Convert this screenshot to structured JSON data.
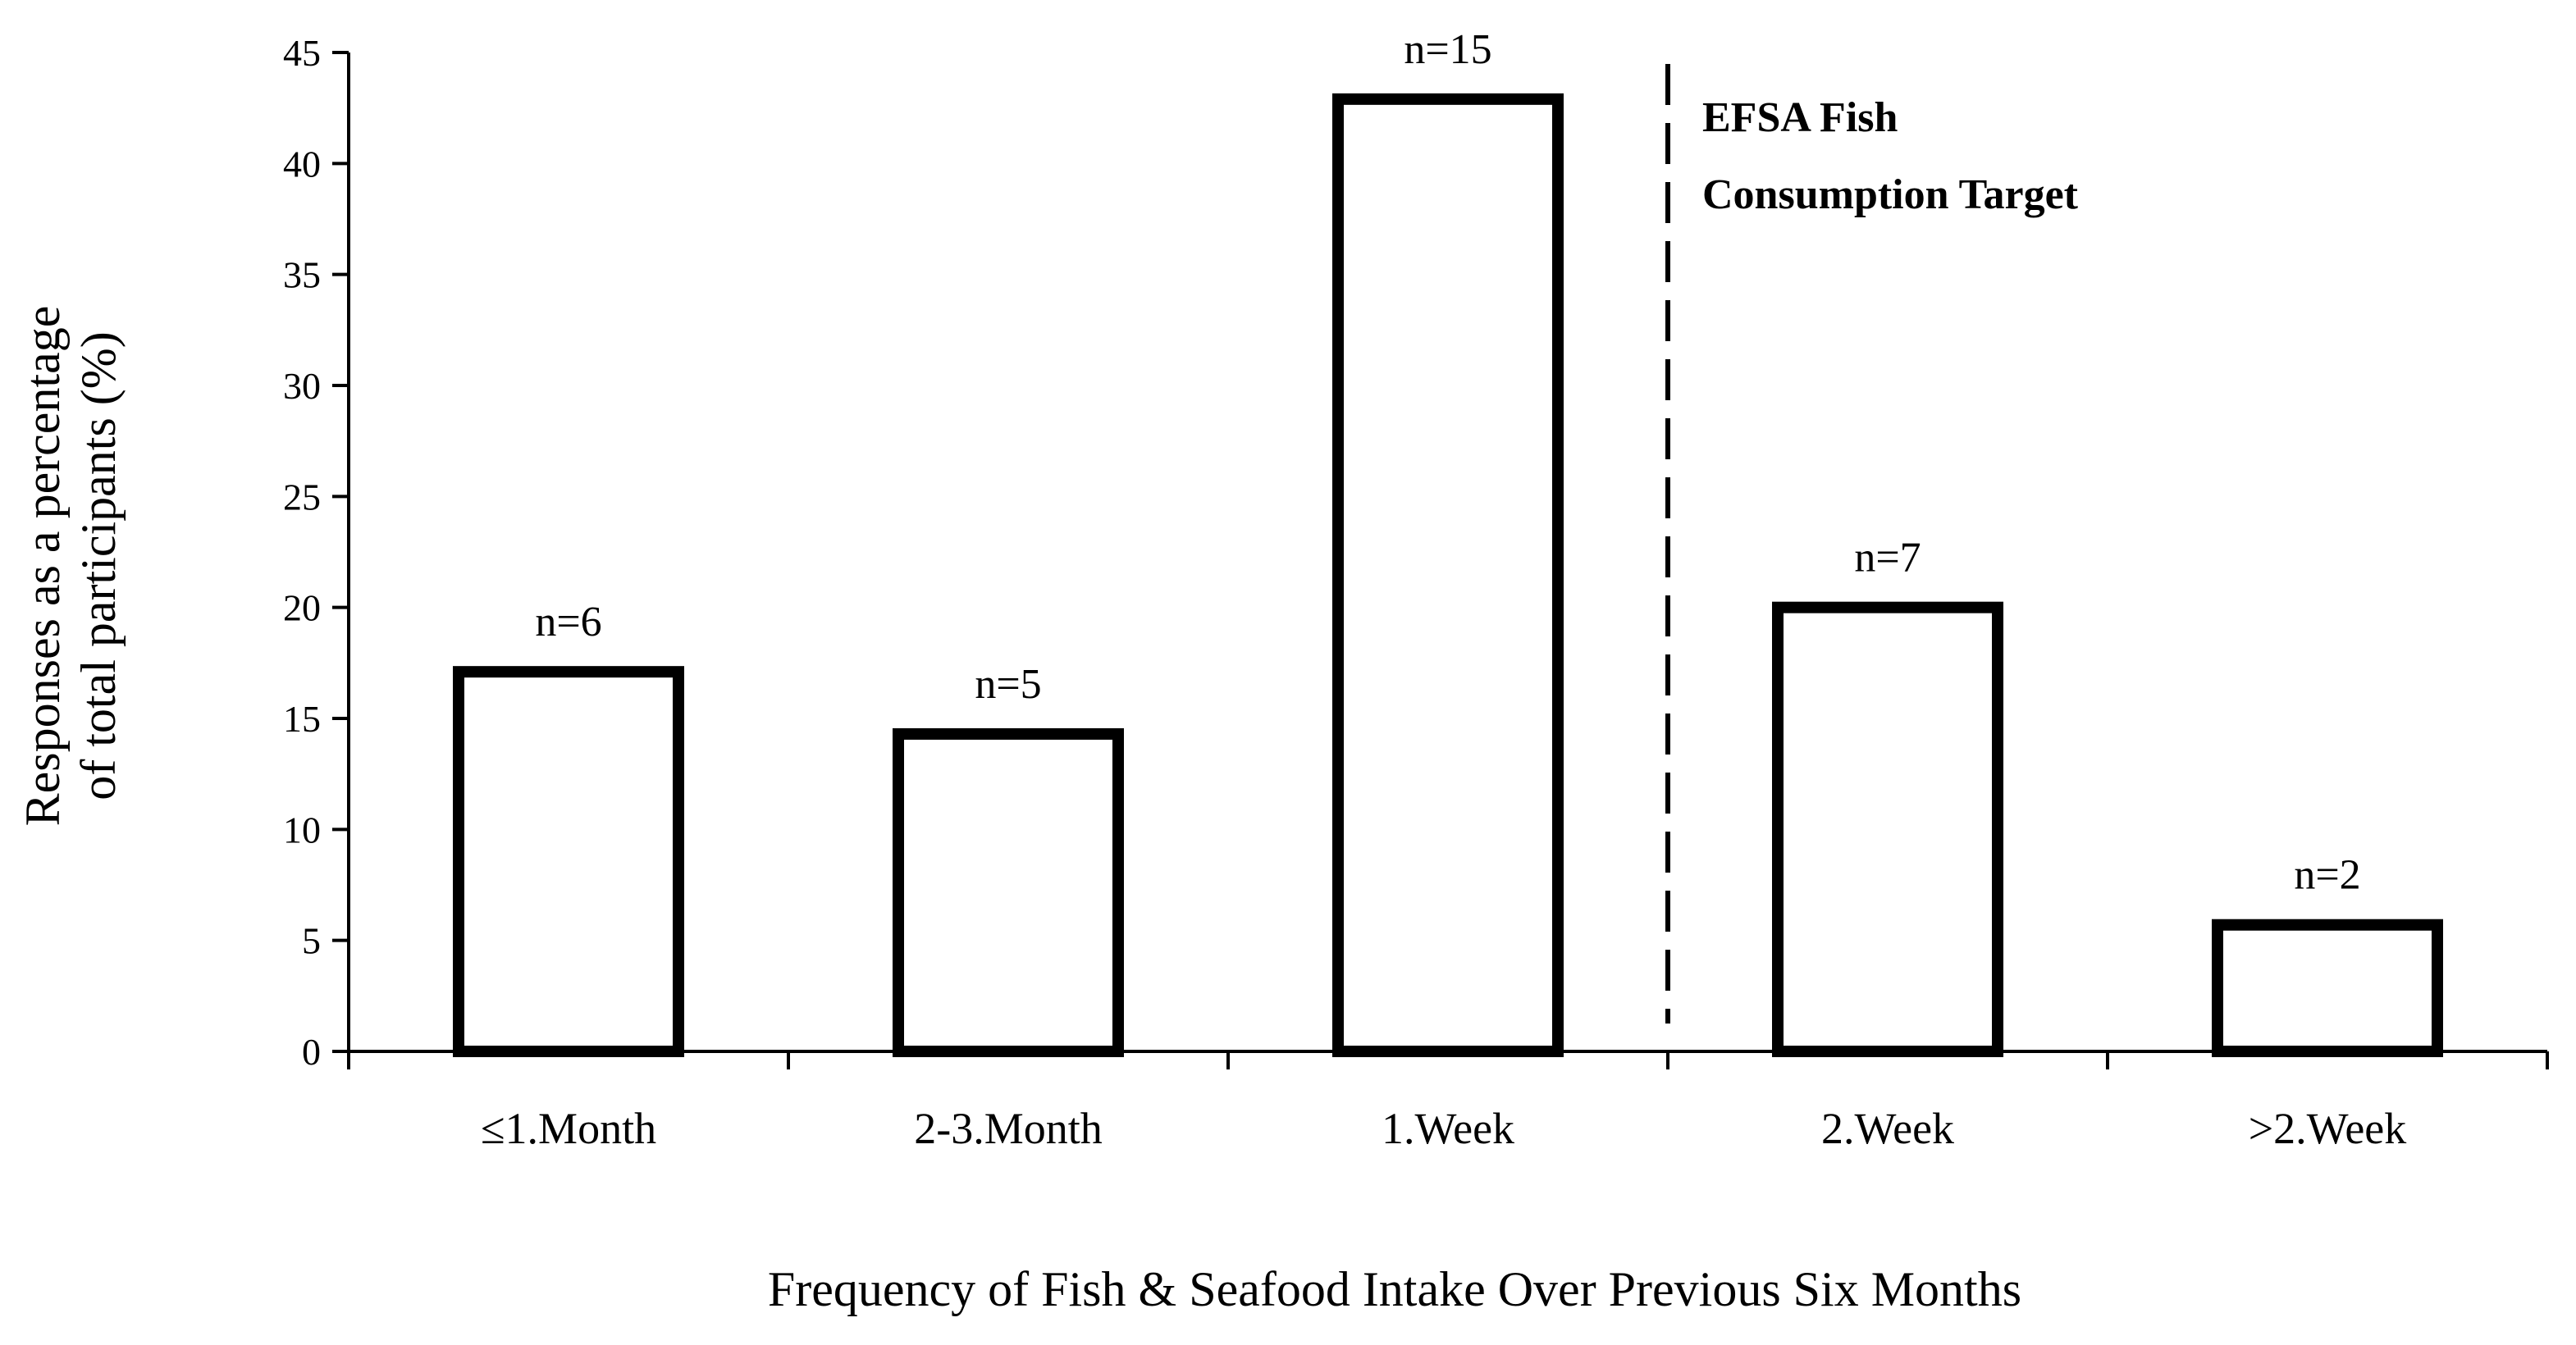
{
  "chart_data": {
    "type": "bar",
    "title": "",
    "xlabel": "Frequency of Fish & Seafood Intake Over Previous Six Months",
    "ylabel_lines": [
      "Responses as a percentage",
      "of total participants (%)"
    ],
    "categories": [
      "≤1.Month",
      "2-3.Month",
      "1.Week",
      "2.Week",
      ">2.Week"
    ],
    "values": [
      17.1,
      14.3,
      42.9,
      20.0,
      5.7
    ],
    "counts": [
      "n=6",
      "n=5",
      "n=15",
      "n=7",
      "n=2"
    ],
    "ylim": [
      0,
      45
    ],
    "yticks": [
      0,
      5,
      10,
      15,
      20,
      25,
      30,
      35,
      40,
      45
    ],
    "grid": false,
    "annotation": {
      "lines": [
        "EFSA Fish",
        "Consumption Target"
      ],
      "position_between": [
        "1.Week",
        "2.Week"
      ],
      "style": "dashed vertical line"
    }
  },
  "colors": {
    "bar_fill": "#ffffff",
    "stroke": "#000000"
  }
}
